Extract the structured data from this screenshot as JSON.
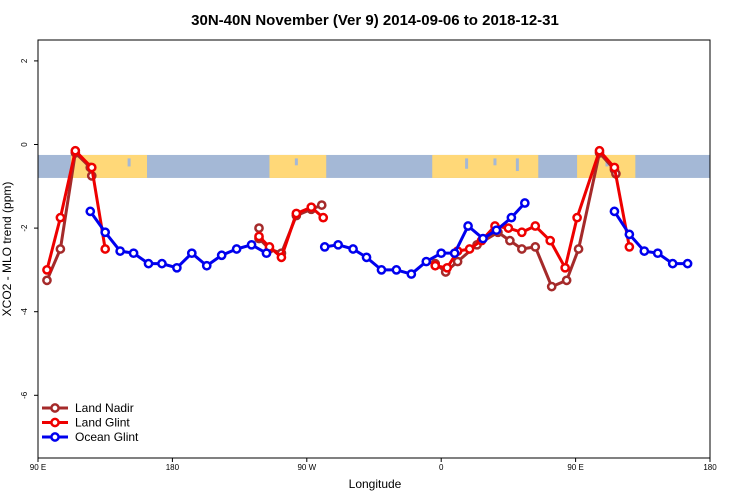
{
  "chart_data": {
    "type": "line",
    "title": "30N-40N November (Ver 9)   2014-09-06 to 2018-12-31",
    "xlabel": "Longitude",
    "ylabel": "XCO2 - MLO trend (ppm)",
    "xlim": [
      90,
      540
    ],
    "ylim": [
      -7.5,
      2.5
    ],
    "x_ticks": [
      {
        "value": 90,
        "label": "90 E"
      },
      {
        "value": 180,
        "label": "180"
      },
      {
        "value": 270,
        "label": "90 W"
      },
      {
        "value": 360,
        "label": "0"
      },
      {
        "value": 450,
        "label": "90 E"
      },
      {
        "value": 540,
        "label": "180"
      }
    ],
    "y_ticks": [
      {
        "value": 2,
        "label": "2"
      },
      {
        "value": 0,
        "label": "0"
      },
      {
        "value": -2,
        "label": "-2"
      },
      {
        "value": -4,
        "label": "-4"
      },
      {
        "value": -6,
        "label": "-6"
      }
    ],
    "land_band": {
      "y_top": -0.25,
      "y_bottom": -0.8,
      "ocean_color": "#a4b8d6",
      "land_color": "#ffd878"
    },
    "series": [
      {
        "name": "Land Nadir",
        "color": "#a52a2a",
        "segments": [
          [
            [
              96,
              -3.25
            ],
            [
              105,
              -2.5
            ],
            [
              115,
              -0.2
            ],
            [
              125,
              -0.55
            ],
            [
              126,
              -0.75
            ]
          ],
          [
            [
              238,
              -2.0
            ],
            [
              238,
              -2.25
            ],
            [
              245,
              -2.5
            ],
            [
              253,
              -2.6
            ],
            [
              263,
              -1.7
            ],
            [
              273,
              -1.55
            ],
            [
              280,
              -1.45
            ]
          ],
          [
            [
              356,
              -2.85
            ],
            [
              363,
              -3.05
            ],
            [
              371,
              -2.8
            ],
            [
              384,
              -2.4
            ],
            [
              398,
              -2.1
            ],
            [
              406,
              -2.3
            ],
            [
              414,
              -2.5
            ],
            [
              423,
              -2.45
            ],
            [
              434,
              -3.4
            ],
            [
              444,
              -3.25
            ],
            [
              452,
              -2.5
            ],
            [
              466,
              -0.2
            ],
            [
              476,
              -0.6
            ],
            [
              477,
              -0.7
            ]
          ]
        ]
      },
      {
        "name": "Land Glint",
        "color": "#ee0000",
        "segments": [
          [
            [
              96,
              -3.0
            ],
            [
              105,
              -1.75
            ],
            [
              115,
              -0.15
            ],
            [
              126,
              -0.55
            ],
            [
              135,
              -2.5
            ]
          ],
          [
            [
              238,
              -2.2
            ],
            [
              245,
              -2.45
            ],
            [
              253,
              -2.7
            ],
            [
              263,
              -1.65
            ],
            [
              273,
              -1.5
            ],
            [
              281,
              -1.75
            ]
          ],
          [
            [
              356,
              -2.9
            ],
            [
              364,
              -2.95
            ],
            [
              371,
              -2.55
            ],
            [
              379,
              -2.5
            ],
            [
              387,
              -2.3
            ],
            [
              396,
              -1.95
            ],
            [
              405,
              -2.0
            ],
            [
              414,
              -2.1
            ],
            [
              423,
              -1.95
            ],
            [
              433,
              -2.3
            ],
            [
              443,
              -2.95
            ],
            [
              451,
              -1.75
            ],
            [
              466,
              -0.15
            ],
            [
              476,
              -0.55
            ],
            [
              486,
              -2.45
            ]
          ]
        ]
      },
      {
        "name": "Ocean Glint",
        "color": "#0000ee",
        "segments": [
          [
            [
              125,
              -1.6
            ],
            [
              135,
              -2.1
            ],
            [
              145,
              -2.55
            ],
            [
              154,
              -2.6
            ],
            [
              164,
              -2.85
            ],
            [
              173,
              -2.85
            ],
            [
              183,
              -2.95
            ],
            [
              193,
              -2.6
            ],
            [
              203,
              -2.9
            ],
            [
              213,
              -2.65
            ],
            [
              223,
              -2.5
            ],
            [
              233,
              -2.4
            ],
            [
              243,
              -2.6
            ]
          ],
          [
            [
              282,
              -2.45
            ],
            [
              291,
              -2.4
            ],
            [
              301,
              -2.5
            ],
            [
              310,
              -2.7
            ],
            [
              320,
              -3.0
            ],
            [
              330,
              -3.0
            ],
            [
              340,
              -3.1
            ],
            [
              350,
              -2.8
            ],
            [
              360,
              -2.6
            ],
            [
              369,
              -2.6
            ],
            [
              378,
              -1.95
            ],
            [
              388,
              -2.25
            ],
            [
              397,
              -2.05
            ],
            [
              407,
              -1.75
            ],
            [
              416,
              -1.4
            ]
          ],
          [
            [
              476,
              -1.6
            ],
            [
              486,
              -2.15
            ],
            [
              496,
              -2.55
            ],
            [
              505,
              -2.6
            ],
            [
              515,
              -2.85
            ],
            [
              525,
              -2.85
            ]
          ]
        ]
      }
    ]
  }
}
